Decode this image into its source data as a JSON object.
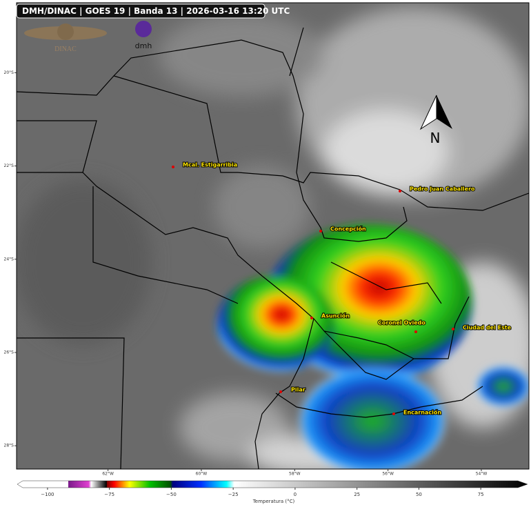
{
  "title": "DMH/DINAC | GOES 19 | Banda 13 | 2026-03-16 13:20 UTC",
  "logos": {
    "dinac": "DINAC",
    "dmh": "dmh"
  },
  "north_arrow": "N",
  "map": {
    "lat_lim": [
      -18.5,
      -28.5
    ],
    "lon_lim": [
      -63.96,
      -52.98
    ],
    "lat_ticks": [
      {
        "value": -20,
        "label": "20°S"
      },
      {
        "value": -22,
        "label": "22°S"
      },
      {
        "value": -24,
        "label": "24°S"
      },
      {
        "value": -26,
        "label": "26°S"
      },
      {
        "value": -28,
        "label": "28°S"
      }
    ],
    "lon_ticks": [
      {
        "value": -62,
        "label": "62°W"
      },
      {
        "value": -60,
        "label": "60°W"
      },
      {
        "value": -58,
        "label": "58°W"
      },
      {
        "value": -56,
        "label": "56°W"
      },
      {
        "value": -54,
        "label": "54°W"
      }
    ]
  },
  "cities": [
    "Mcal. Estigarribia",
    "Pedro Juan Caballero",
    "Concepción",
    "Asunción",
    "Coronel Oviedo",
    "Ciudad del Este",
    "Pilar",
    "Encarnación"
  ],
  "colorbar": {
    "label": "Temperatura (°C)",
    "lim": [
      -110,
      90
    ],
    "ticks": [
      {
        "value": -100,
        "label": "−100"
      },
      {
        "value": -75,
        "label": "−75"
      },
      {
        "value": -50,
        "label": "−50"
      },
      {
        "value": -25,
        "label": "−25"
      },
      0,
      25,
      50,
      75
    ]
  }
}
